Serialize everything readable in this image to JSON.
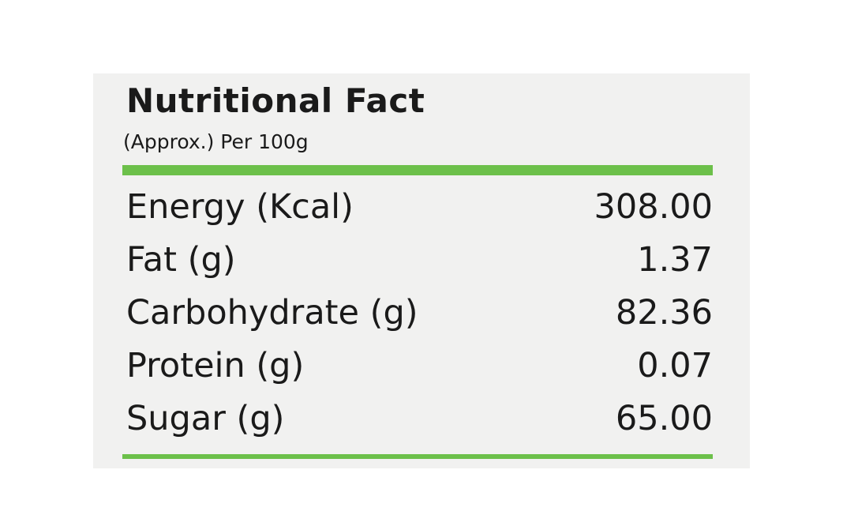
{
  "header": {
    "title": "Nutritional Fact",
    "subtitle": "(Approx.) Per 100g"
  },
  "table": {
    "rows": [
      [
        "Energy (Kcal)",
        "308.00"
      ],
      [
        "Fat (g)",
        "1.37"
      ],
      [
        "Carbohydrate (g)",
        "82.36"
      ],
      [
        "Protein (g)",
        "0.07"
      ],
      [
        "Sugar (g)",
        "65.00"
      ]
    ]
  }
}
